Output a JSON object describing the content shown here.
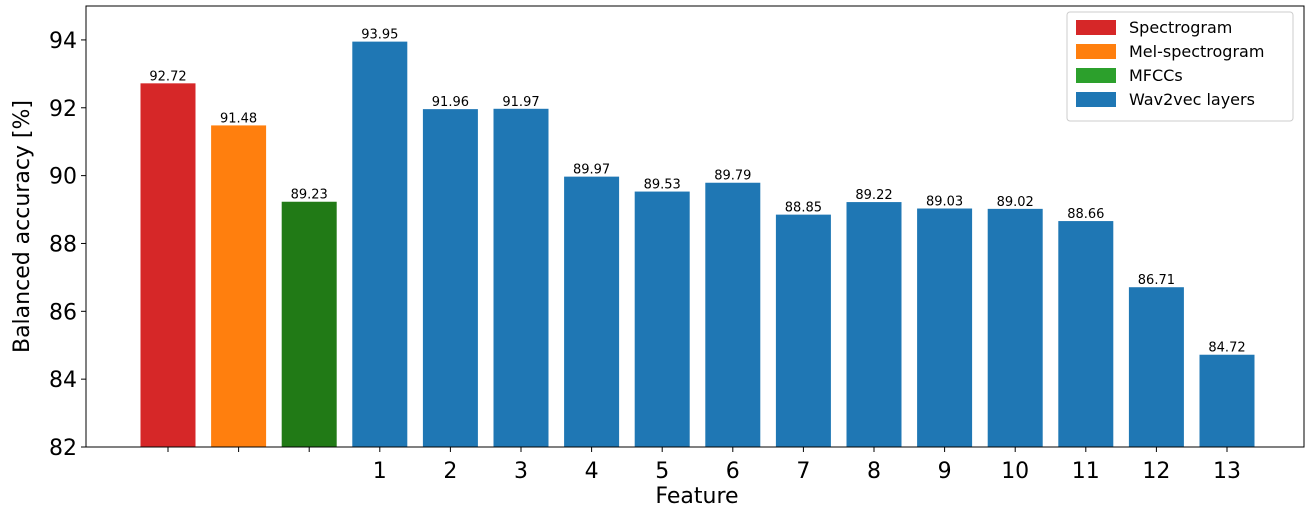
{
  "chart_data": {
    "type": "bar",
    "title": "",
    "xlabel": "Feature",
    "ylabel": "Balanced accuracy [%]",
    "ylim": [
      82,
      95
    ],
    "yticks": [
      82,
      84,
      86,
      88,
      90,
      92,
      94
    ],
    "grid": false,
    "legend_position": "top-right",
    "categories": [
      "",
      "",
      "",
      "1",
      "2",
      "3",
      "4",
      "5",
      "6",
      "7",
      "8",
      "9",
      "10",
      "11",
      "12",
      "13"
    ],
    "values": [
      92.72,
      91.48,
      89.23,
      93.95,
      91.96,
      91.97,
      89.97,
      89.53,
      89.79,
      88.85,
      89.22,
      89.03,
      89.02,
      88.66,
      86.71,
      84.72
    ],
    "data_labels": [
      "92.72",
      "91.48",
      "89.23",
      "93.95",
      "91.96",
      "91.97",
      "89.97",
      "89.53",
      "89.79",
      "88.85",
      "89.22",
      "89.03",
      "89.02",
      "88.66",
      "86.71",
      "84.72"
    ],
    "bar_groups": [
      0,
      1,
      2,
      3,
      3,
      3,
      3,
      3,
      3,
      3,
      3,
      3,
      3,
      3,
      3,
      3
    ],
    "legend": [
      {
        "name": "Spectrogram",
        "color": "#d62728"
      },
      {
        "name": "Mel-spectrogram",
        "color": "#ff7f0e"
      },
      {
        "name": "MFCCs",
        "color": "#2ca02c"
      },
      {
        "name": "Wav2vec layers",
        "color": "#1f77b4"
      }
    ],
    "bar_colors": [
      "#d62728",
      "#ff7f0e",
      "#217a16",
      "#1f77b4",
      "#1f77b4",
      "#1f77b4",
      "#1f77b4",
      "#1f77b4",
      "#1f77b4",
      "#1f77b4",
      "#1f77b4",
      "#1f77b4",
      "#1f77b4",
      "#1f77b4",
      "#1f77b4",
      "#1f77b4"
    ]
  }
}
